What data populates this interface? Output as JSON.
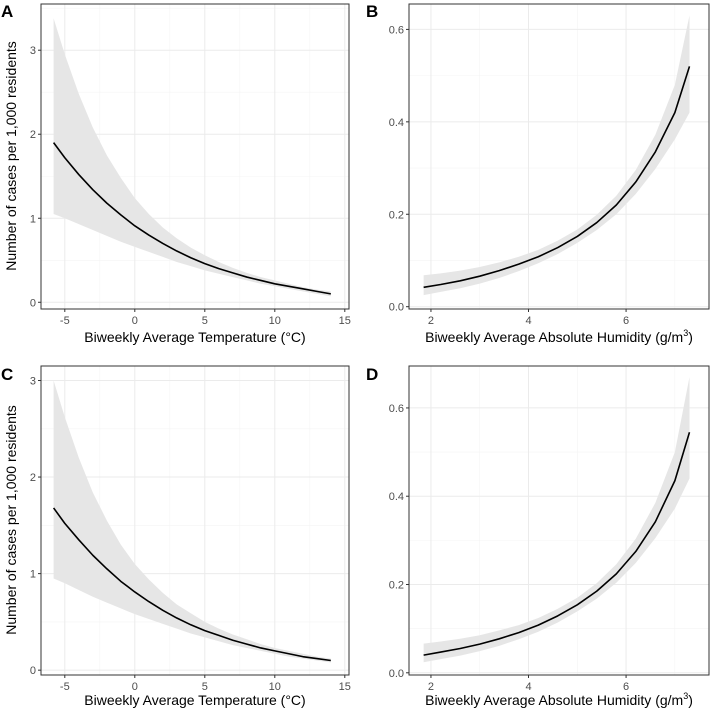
{
  "figure": {
    "y_axis_title": "Number of cases per 1,000 residents",
    "x_axis_title_temperature": "Biweekly Average Temperature (°C)",
    "x_axis_title_humidity_prefix": "Biweekly Average Absolute Humidity (g/m",
    "x_axis_title_humidity_sup": "3",
    "x_axis_title_humidity_suffix": ")"
  },
  "colors": {
    "ribbon": "#e6e6e6",
    "line": "#000000",
    "grid_major": "#ebebeb",
    "grid_minor": "#f4f4f4",
    "panel_border": "#333333"
  },
  "chart_data": [
    {
      "panel": "A",
      "type": "line",
      "xlabel": "Biweekly Average Temperature (°C)",
      "ylabel": "Number of cases per 1,000 residents",
      "xlim": [
        -6.7,
        15.3
      ],
      "ylim": [
        -0.08,
        3.55
      ],
      "x_ticks": [
        -5,
        0,
        5,
        10,
        15
      ],
      "x_tick_labels": [
        "-5",
        "0",
        "5",
        "10",
        "15"
      ],
      "y_ticks": [
        0,
        1,
        2,
        3
      ],
      "y_tick_labels": [
        "0",
        "1",
        "2",
        "3"
      ],
      "x": [
        -5.8,
        -5,
        -4,
        -3,
        -2,
        -1,
        0,
        1,
        2,
        3,
        4,
        5,
        6,
        7,
        8,
        9,
        10,
        11,
        12,
        13,
        14
      ],
      "y": [
        1.9,
        1.72,
        1.52,
        1.34,
        1.18,
        1.04,
        0.91,
        0.8,
        0.7,
        0.61,
        0.53,
        0.46,
        0.4,
        0.35,
        0.3,
        0.26,
        0.22,
        0.19,
        0.16,
        0.13,
        0.1
      ],
      "lower": [
        1.05,
        1.0,
        0.93,
        0.86,
        0.79,
        0.72,
        0.66,
        0.6,
        0.54,
        0.48,
        0.43,
        0.38,
        0.34,
        0.3,
        0.26,
        0.22,
        0.19,
        0.16,
        0.13,
        0.1,
        0.07
      ],
      "upper": [
        3.38,
        2.95,
        2.48,
        2.08,
        1.75,
        1.48,
        1.24,
        1.05,
        0.89,
        0.76,
        0.65,
        0.56,
        0.48,
        0.41,
        0.35,
        0.3,
        0.26,
        0.22,
        0.18,
        0.15,
        0.13
      ]
    },
    {
      "panel": "B",
      "type": "line",
      "xlabel": "Biweekly Average Absolute Humidity (g/m3)",
      "ylabel": "",
      "xlim": [
        1.55,
        7.7
      ],
      "ylim": [
        -0.005,
        0.655
      ],
      "x_ticks": [
        2,
        4,
        6
      ],
      "x_tick_labels": [
        "2",
        "4",
        "6"
      ],
      "y_ticks": [
        0.0,
        0.2,
        0.4,
        0.6
      ],
      "y_tick_labels": [
        "0.0",
        "0.2",
        "0.4",
        "0.6"
      ],
      "x": [
        1.85,
        2.2,
        2.6,
        3.0,
        3.4,
        3.8,
        4.2,
        4.6,
        5.0,
        5.4,
        5.8,
        6.2,
        6.6,
        7.0,
        7.3
      ],
      "y": [
        0.042,
        0.048,
        0.056,
        0.066,
        0.078,
        0.092,
        0.108,
        0.128,
        0.152,
        0.182,
        0.22,
        0.27,
        0.335,
        0.42,
        0.52
      ],
      "lower": [
        0.025,
        0.032,
        0.04,
        0.05,
        0.062,
        0.077,
        0.094,
        0.114,
        0.138,
        0.166,
        0.2,
        0.244,
        0.298,
        0.362,
        0.42
      ],
      "upper": [
        0.068,
        0.072,
        0.078,
        0.086,
        0.096,
        0.108,
        0.123,
        0.143,
        0.167,
        0.199,
        0.24,
        0.296,
        0.372,
        0.48,
        0.63
      ]
    },
    {
      "panel": "C",
      "type": "line",
      "xlabel": "Biweekly Average Temperature (°C)",
      "ylabel": "Number of cases per 1,000 residents",
      "xlim": [
        -6.7,
        15.3
      ],
      "ylim": [
        -0.05,
        3.15
      ],
      "x_ticks": [
        -5,
        0,
        5,
        10,
        15
      ],
      "x_tick_labels": [
        "-5",
        "0",
        "5",
        "10",
        "15"
      ],
      "y_ticks": [
        0,
        1,
        2,
        3
      ],
      "y_tick_labels": [
        "0",
        "1",
        "2",
        "3"
      ],
      "x": [
        -5.8,
        -5,
        -4,
        -3,
        -2,
        -1,
        0,
        1,
        2,
        3,
        4,
        5,
        6,
        7,
        8,
        9,
        10,
        11,
        12,
        13,
        14
      ],
      "y": [
        1.68,
        1.52,
        1.35,
        1.19,
        1.05,
        0.92,
        0.81,
        0.71,
        0.62,
        0.54,
        0.47,
        0.41,
        0.36,
        0.31,
        0.27,
        0.23,
        0.2,
        0.17,
        0.14,
        0.12,
        0.1
      ],
      "lower": [
        0.95,
        0.9,
        0.83,
        0.76,
        0.7,
        0.64,
        0.58,
        0.53,
        0.48,
        0.43,
        0.38,
        0.34,
        0.3,
        0.26,
        0.23,
        0.2,
        0.17,
        0.14,
        0.12,
        0.1,
        0.08
      ],
      "upper": [
        3.0,
        2.62,
        2.2,
        1.84,
        1.55,
        1.3,
        1.1,
        0.94,
        0.8,
        0.68,
        0.59,
        0.5,
        0.43,
        0.37,
        0.32,
        0.27,
        0.23,
        0.2,
        0.17,
        0.14,
        0.12
      ]
    },
    {
      "panel": "D",
      "type": "line",
      "xlabel": "Biweekly Average Absolute Humidity (g/m3)",
      "ylabel": "",
      "xlim": [
        1.55,
        7.7
      ],
      "ylim": [
        -0.005,
        0.695
      ],
      "x_ticks": [
        2,
        4,
        6
      ],
      "x_tick_labels": [
        "2",
        "4",
        "6"
      ],
      "y_ticks": [
        0.0,
        0.2,
        0.4,
        0.6
      ],
      "y_tick_labels": [
        "0.0",
        "0.2",
        "0.4",
        "0.6"
      ],
      "x": [
        1.85,
        2.2,
        2.6,
        3.0,
        3.4,
        3.8,
        4.2,
        4.6,
        5.0,
        5.4,
        5.8,
        6.2,
        6.6,
        7.0,
        7.3
      ],
      "y": [
        0.04,
        0.047,
        0.055,
        0.065,
        0.077,
        0.091,
        0.108,
        0.129,
        0.154,
        0.185,
        0.224,
        0.275,
        0.342,
        0.435,
        0.545
      ],
      "lower": [
        0.024,
        0.031,
        0.039,
        0.049,
        0.061,
        0.076,
        0.093,
        0.114,
        0.139,
        0.168,
        0.204,
        0.249,
        0.305,
        0.372,
        0.44
      ],
      "upper": [
        0.066,
        0.071,
        0.077,
        0.085,
        0.096,
        0.108,
        0.124,
        0.145,
        0.17,
        0.203,
        0.246,
        0.304,
        0.385,
        0.5,
        0.67
      ]
    }
  ]
}
